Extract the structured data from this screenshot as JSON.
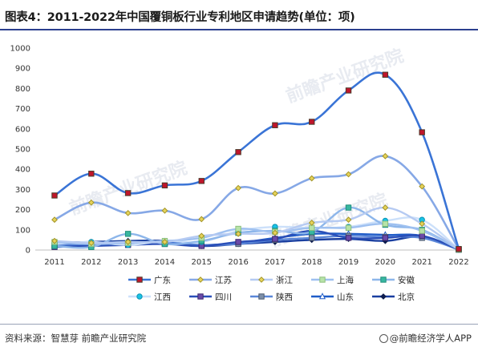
{
  "header": {
    "title": "图表4：2011-2022年中国覆铜板行业专利地区申请趋势(单位：项)"
  },
  "footer": {
    "source": "资料来源：智慧芽 前瞻产业研究院",
    "brand": "@前瞻经济学人APP"
  },
  "watermark": {
    "text": "前瞻产业研究院"
  },
  "chart_data": {
    "type": "line",
    "title": "图表4：2011-2022年中国覆铜板行业专利地区申请趋势(单位：项)",
    "xlabel": "",
    "ylabel": "",
    "ylim": [
      0,
      1000
    ],
    "yticks": [
      0,
      100,
      200,
      300,
      400,
      500,
      600,
      700,
      800,
      900,
      1000
    ],
    "grid": false,
    "legend_position": "bottom",
    "x": [
      "2011",
      "2012",
      "2013",
      "2014",
      "2015",
      "2016",
      "2017",
      "2018",
      "2019",
      "2020",
      "2021",
      "2022"
    ],
    "series": [
      {
        "name": "广东",
        "color": "#3a74d6",
        "marker": "square-red",
        "values": [
          270,
          378,
          282,
          320,
          342,
          485,
          618,
          635,
          790,
          868,
          583,
          5
        ]
      },
      {
        "name": "江苏",
        "color": "#86a8e6",
        "marker": "diamond-yellow",
        "values": [
          150,
          235,
          183,
          195,
          153,
          307,
          280,
          355,
          375,
          465,
          315,
          5
        ]
      },
      {
        "name": "浙江",
        "color": "#b5caf2",
        "marker": "diamond-yellow",
        "values": [
          45,
          35,
          40,
          40,
          70,
          80,
          85,
          135,
          150,
          210,
          130,
          3
        ]
      },
      {
        "name": "上海",
        "color": "#9ec0f0",
        "marker": "square-lightgreen",
        "values": [
          40,
          30,
          35,
          45,
          60,
          105,
          90,
          110,
          110,
          130,
          95,
          3
        ]
      },
      {
        "name": "安徽",
        "color": "#8db6ea",
        "marker": "square-teal",
        "values": [
          20,
          15,
          80,
          30,
          45,
          85,
          95,
          90,
          210,
          125,
          100,
          2
        ]
      },
      {
        "name": "江西",
        "color": "#cce0fa",
        "marker": "circle-cyan",
        "values": [
          30,
          40,
          25,
          45,
          40,
          95,
          115,
          110,
          115,
          145,
          150,
          2
        ]
      },
      {
        "name": "四川",
        "color": "#2a4fb8",
        "marker": "square-purple",
        "values": [
          15,
          20,
          25,
          30,
          20,
          40,
          55,
          95,
          60,
          60,
          70,
          2
        ]
      },
      {
        "name": "陕西",
        "color": "#5b87d8",
        "marker": "square-steel",
        "values": [
          25,
          30,
          30,
          35,
          25,
          30,
          50,
          60,
          70,
          65,
          60,
          2
        ]
      },
      {
        "name": "山东",
        "color": "#1f5cc8",
        "marker": "triangle-white",
        "values": [
          20,
          25,
          35,
          40,
          25,
          35,
          60,
          80,
          80,
          75,
          70,
          3
        ]
      },
      {
        "name": "北京",
        "color": "#1a3fa0",
        "marker": "diamond-navy",
        "values": [
          35,
          40,
          45,
          45,
          20,
          30,
          40,
          50,
          55,
          45,
          65,
          2
        ]
      }
    ]
  }
}
